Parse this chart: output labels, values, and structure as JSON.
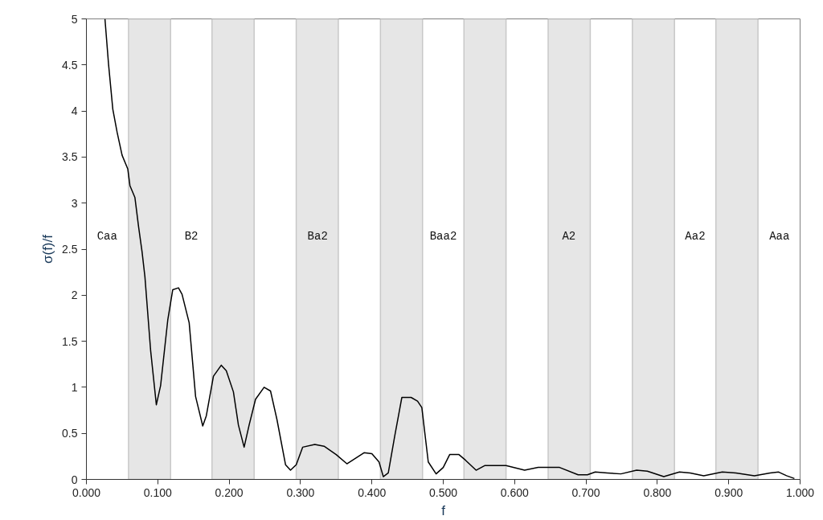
{
  "chart_data": {
    "type": "line",
    "xlabel": "f",
    "ylabel": "σ(f)/f",
    "x": [
      0.026,
      0.031,
      0.037,
      0.043,
      0.05,
      0.058,
      0.061,
      0.068,
      0.073,
      0.078,
      0.082,
      0.09,
      0.098,
      0.104,
      0.114,
      0.121,
      0.129,
      0.134,
      0.144,
      0.153,
      0.163,
      0.168,
      0.178,
      0.189,
      0.196,
      0.206,
      0.213,
      0.221,
      0.228,
      0.237,
      0.249,
      0.258,
      0.267,
      0.279,
      0.286,
      0.294,
      0.303,
      0.32,
      0.333,
      0.35,
      0.365,
      0.389,
      0.4,
      0.41,
      0.416,
      0.423,
      0.432,
      0.442,
      0.455,
      0.464,
      0.47,
      0.479,
      0.49,
      0.5,
      0.509,
      0.522,
      0.531,
      0.546,
      0.558,
      0.588,
      0.614,
      0.633,
      0.663,
      0.689,
      0.702,
      0.713,
      0.73,
      0.749,
      0.771,
      0.786,
      0.809,
      0.831,
      0.846,
      0.865,
      0.891,
      0.91,
      0.936,
      0.958,
      0.97,
      0.981,
      0.992
    ],
    "series": [
      {
        "color": "#000000",
        "values": [
          5.0,
          4.51,
          4.02,
          3.77,
          3.52,
          3.37,
          3.19,
          3.06,
          2.75,
          2.47,
          2.2,
          1.4,
          0.81,
          1.02,
          1.73,
          2.06,
          2.08,
          2.01,
          1.7,
          0.9,
          0.58,
          0.69,
          1.12,
          1.24,
          1.18,
          0.95,
          0.59,
          0.35,
          0.59,
          0.87,
          1.0,
          0.96,
          0.65,
          0.16,
          0.1,
          0.16,
          0.35,
          0.38,
          0.36,
          0.27,
          0.17,
          0.29,
          0.28,
          0.19,
          0.03,
          0.07,
          0.47,
          0.89,
          0.89,
          0.85,
          0.78,
          0.19,
          0.06,
          0.13,
          0.27,
          0.27,
          0.21,
          0.1,
          0.15,
          0.15,
          0.1,
          0.13,
          0.13,
          0.05,
          0.05,
          0.08,
          0.07,
          0.06,
          0.1,
          0.09,
          0.03,
          0.08,
          0.07,
          0.04,
          0.08,
          0.07,
          0.04,
          0.07,
          0.08,
          0.04,
          0.01
        ]
      }
    ],
    "xlim": [
      0,
      1
    ],
    "ylim": [
      0,
      5
    ],
    "xticks": [
      {
        "value": 0,
        "label": "0.000"
      },
      {
        "value": 0.1,
        "label": "0.100"
      },
      {
        "value": 0.2,
        "label": "0.200"
      },
      {
        "value": 0.3,
        "label": "0.300"
      },
      {
        "value": 0.4,
        "label": "0.400"
      },
      {
        "value": 0.5,
        "label": "0.500"
      },
      {
        "value": 0.6,
        "label": "0.600"
      },
      {
        "value": 0.7,
        "label": "0.700"
      },
      {
        "value": 0.8,
        "label": "0.800"
      },
      {
        "value": 0.9,
        "label": "0.900"
      },
      {
        "value": 1,
        "label": "1.000"
      }
    ],
    "yticks": [
      0,
      0.5,
      1,
      1.5,
      2,
      2.5,
      3,
      3.5,
      4,
      4.5,
      5
    ],
    "grid": false,
    "marker": "none",
    "line_style": "solid",
    "bands": [
      {
        "axis": "x",
        "from": 0.059,
        "to": 0.118,
        "color": "#e6e6e6"
      },
      {
        "axis": "x",
        "from": 0.176,
        "to": 0.235,
        "color": "#e6e6e6"
      },
      {
        "axis": "x",
        "from": 0.294,
        "to": 0.353,
        "color": "#e6e6e6"
      },
      {
        "axis": "x",
        "from": 0.412,
        "to": 0.471,
        "color": "#e6e6e6"
      },
      {
        "axis": "x",
        "from": 0.529,
        "to": 0.588,
        "color": "#e6e6e6"
      },
      {
        "axis": "x",
        "from": 0.647,
        "to": 0.706,
        "color": "#e6e6e6"
      },
      {
        "axis": "x",
        "from": 0.765,
        "to": 0.824,
        "color": "#e6e6e6"
      },
      {
        "axis": "x",
        "from": 0.882,
        "to": 0.941,
        "color": "#e6e6e6"
      }
    ],
    "annotations": [
      "Caa",
      "B2",
      "Ba2",
      "Baa2",
      "A2",
      "Aa2",
      "Aaa"
    ]
  }
}
